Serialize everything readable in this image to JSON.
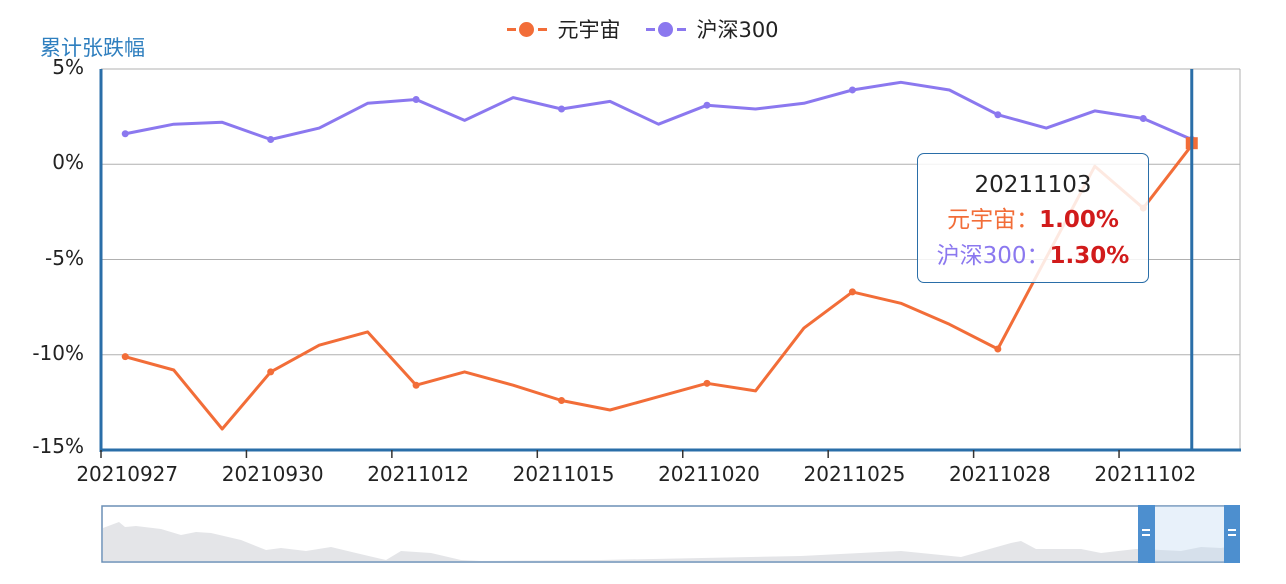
{
  "y_axis_title": "累计张跌幅",
  "legend": [
    {
      "label": "元宇宙",
      "color": "#f26d38"
    },
    {
      "label": "沪深300",
      "color": "#8b78ef"
    }
  ],
  "y_ticks": [
    "5%",
    "0%",
    "-5%",
    "-10%",
    "-15%"
  ],
  "x_tick_labels": [
    "20210927",
    "20210930",
    "20211012",
    "20211015",
    "20211020",
    "20211025",
    "20211028",
    "20211102"
  ],
  "tooltip": {
    "date": "20211103",
    "rows": [
      {
        "name": "元宇宙",
        "sep": "：",
        "value": "1.00%",
        "name_color": "#f26d38"
      },
      {
        "name": "沪深300",
        "sep": "：",
        "value": "1.30%",
        "name_color": "#8b78ef"
      }
    ]
  },
  "colors": {
    "axis": "#2a6ea8",
    "grid": "#b0b0b0",
    "value_red": "#d11b1b",
    "slider_handle": "#4d8fcf"
  },
  "chart_data": {
    "type": "line",
    "title": "",
    "ylabel": "累计张跌幅",
    "xlabel": "",
    "ylim": [
      -15,
      5
    ],
    "y_ticks": [
      5,
      0,
      -5,
      -10,
      -15
    ],
    "grid": true,
    "legend_position": "top-center",
    "x": [
      "20210927",
      "20210928",
      "20210929",
      "20210930",
      "20211008",
      "20211011",
      "20211012",
      "20211013",
      "20211014",
      "20211015",
      "20211018",
      "20211019",
      "20211020",
      "20211021",
      "20211022",
      "20211025",
      "20211026",
      "20211027",
      "20211028",
      "20211029",
      "20211101",
      "20211102",
      "20211103"
    ],
    "series": [
      {
        "name": "元宇宙",
        "color": "#f26d38",
        "values": [
          -10.1,
          -10.8,
          -13.9,
          -10.9,
          -9.5,
          -8.8,
          -11.6,
          -10.9,
          -11.6,
          -12.4,
          -12.9,
          -12.2,
          -11.5,
          -11.9,
          -8.6,
          -6.7,
          -7.3,
          -8.4,
          -9.7,
          -4.9,
          -0.1,
          -2.3,
          1.0
        ]
      },
      {
        "name": "沪深300",
        "color": "#8b78ef",
        "values": [
          1.6,
          2.1,
          2.2,
          1.3,
          1.9,
          3.2,
          3.4,
          2.3,
          3.5,
          2.9,
          3.3,
          2.1,
          3.1,
          2.9,
          3.2,
          3.9,
          4.3,
          3.9,
          2.6,
          1.9,
          2.8,
          2.4,
          1.3
        ]
      }
    ],
    "highlight_index": 22,
    "annotations": [
      "tooltip 20211103: 元宇宙 1.00%, 沪深300 1.30%"
    ]
  }
}
